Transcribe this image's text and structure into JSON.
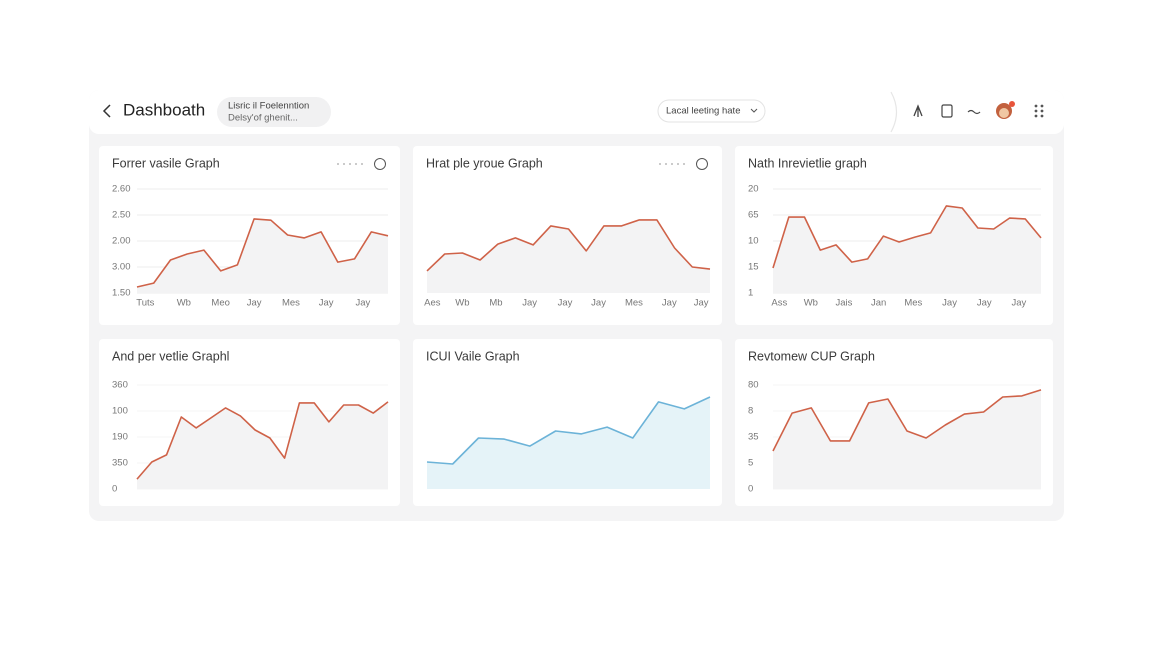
{
  "header": {
    "title": "Dashboath",
    "pill": [
      "Lisric il Foelenntion",
      "Delsy'of ghenit..."
    ],
    "dropdown": "Lacal leeting hate"
  },
  "chart_data": [
    {
      "type": "line",
      "title": "Forrer vasile Graph",
      "color": "#cf6248",
      "area_color": "#f3f3f4",
      "grid": true,
      "x": [
        0,
        1,
        2,
        3,
        4,
        5,
        6,
        7,
        8,
        9,
        10,
        11,
        12,
        13,
        14,
        15
      ],
      "values": [
        0.23,
        0.38,
        1.27,
        1.5,
        1.65,
        0.85,
        1.08,
        2.85,
        2.8,
        2.23,
        2.12,
        2.35,
        1.19,
        1.31,
        2.35,
        2.2
      ],
      "xlim": [
        0,
        15
      ],
      "ylim": [
        0,
        4
      ],
      "yticks": [
        {
          "value": 4,
          "label": "2.60"
        },
        {
          "value": 3,
          "label": "2.50"
        },
        {
          "value": 2,
          "label": "2.00"
        },
        {
          "value": 1,
          "label": "3.00"
        },
        {
          "value": 0,
          "label": "1.50"
        }
      ],
      "xticks": [
        {
          "value": 0.5,
          "label": "Tuts"
        },
        {
          "value": 2.8,
          "label": "Wb"
        },
        {
          "value": 5,
          "label": "Meo"
        },
        {
          "value": 7,
          "label": "Jay"
        },
        {
          "value": 9.2,
          "label": "Mes"
        },
        {
          "value": 11.3,
          "label": "Jay"
        },
        {
          "value": 13.5,
          "label": "Jay"
        }
      ]
    },
    {
      "type": "line",
      "title": "Hrat ple yroue Graph",
      "color": "#cf6248",
      "area_color": "#f3f3f4",
      "grid": false,
      "x": [
        0,
        1,
        2,
        3,
        4,
        5,
        6,
        7,
        8,
        9,
        10,
        11,
        12,
        13,
        14,
        15,
        16
      ],
      "values": [
        0.85,
        1.5,
        1.54,
        1.27,
        1.88,
        2.12,
        1.85,
        2.58,
        2.46,
        1.62,
        2.58,
        2.58,
        2.81,
        2.81,
        1.73,
        1,
        0.92
      ],
      "xlim": [
        0,
        16
      ],
      "ylim": [
        0,
        4
      ],
      "xticks": [
        {
          "value": 0.3,
          "label": "Aes"
        },
        {
          "value": 2,
          "label": "Wb"
        },
        {
          "value": 3.9,
          "label": "Mb"
        },
        {
          "value": 5.8,
          "label": "Jay"
        },
        {
          "value": 7.8,
          "label": "Jay"
        },
        {
          "value": 9.7,
          "label": "Jay"
        },
        {
          "value": 11.7,
          "label": "Mes"
        },
        {
          "value": 13.7,
          "label": "Jay"
        },
        {
          "value": 15.5,
          "label": "Jay"
        }
      ]
    },
    {
      "type": "line",
      "title": "Nath Inrevietlie graph",
      "color": "#cf6248",
      "area_color": "#f3f3f4",
      "grid": true,
      "x": [
        0,
        1,
        2,
        3,
        4,
        5,
        6,
        7,
        8,
        9,
        10,
        11,
        12,
        13,
        14,
        15,
        16,
        17
      ],
      "values": [
        0.96,
        2.92,
        2.92,
        1.65,
        1.85,
        1.19,
        1.31,
        2.19,
        1.96,
        2.15,
        2.31,
        3.35,
        3.27,
        2.5,
        2.46,
        2.88,
        2.85,
        2.12
      ],
      "xlim": [
        0,
        17
      ],
      "ylim": [
        0,
        4
      ],
      "yticks": [
        {
          "value": 4,
          "label": "20"
        },
        {
          "value": 3,
          "label": "65"
        },
        {
          "value": 2,
          "label": "10"
        },
        {
          "value": 1,
          "label": "15"
        },
        {
          "value": 0,
          "label": "1"
        }
      ],
      "xticks": [
        {
          "value": 0.4,
          "label": "Ass"
        },
        {
          "value": 2.4,
          "label": "Wb"
        },
        {
          "value": 4.5,
          "label": "Jais"
        },
        {
          "value": 6.7,
          "label": "Jan"
        },
        {
          "value": 8.9,
          "label": "Mes"
        },
        {
          "value": 11.2,
          "label": "Jay"
        },
        {
          "value": 13.4,
          "label": "Jay"
        },
        {
          "value": 15.6,
          "label": "Jay"
        }
      ]
    },
    {
      "type": "line",
      "title": "And per vetlie Graphl",
      "color": "#cf6248",
      "area_color": "#f3f3f4",
      "grid": false,
      "x": [
        0,
        1,
        2,
        3,
        4,
        5,
        6,
        7,
        8,
        9,
        10,
        11,
        12,
        13,
        14,
        15,
        16,
        17
      ],
      "values": [
        0.38,
        1.04,
        1.31,
        2.77,
        2.35,
        2.73,
        3.12,
        2.81,
        2.27,
        1.96,
        1.19,
        3.31,
        3.31,
        2.58,
        3.23,
        3.23,
        2.92,
        3.35
      ],
      "xlim": [
        0,
        17
      ],
      "ylim": [
        0,
        4
      ],
      "yticks": [
        {
          "value": 4,
          "label": "360"
        },
        {
          "value": 3,
          "label": "100"
        },
        {
          "value": 2,
          "label": "190"
        },
        {
          "value": 1,
          "label": "350"
        },
        0
      ]
    },
    {
      "type": "line",
      "title": "ICUI Vaile Graph",
      "color": "#6cb3d8",
      "area_color": "#e5f3f8",
      "grid": false,
      "x": [
        0,
        1,
        2,
        3,
        4,
        5,
        6,
        7,
        8,
        9,
        10,
        11
      ],
      "values": [
        1.04,
        0.96,
        1.96,
        1.92,
        1.65,
        2.23,
        2.12,
        2.38,
        1.96,
        3.35,
        3.08,
        3.54
      ],
      "xlim": [
        0,
        11
      ],
      "ylim": [
        0,
        4
      ]
    },
    {
      "type": "line",
      "title": "Revtomew CUP Graph",
      "color": "#cf6248",
      "area_color": "#f3f3f4",
      "grid": false,
      "x": [
        0,
        1,
        2,
        3,
        4,
        5,
        6,
        7,
        8,
        9,
        10,
        11,
        12,
        13,
        14
      ],
      "values": [
        1.46,
        2.92,
        3.12,
        1.85,
        1.85,
        3.31,
        3.46,
        2.23,
        1.96,
        2.46,
        2.88,
        2.96,
        3.54,
        3.58,
        3.81
      ],
      "xlim": [
        0,
        14
      ],
      "ylim": [
        0,
        4
      ],
      "yticks": [
        {
          "value": 4,
          "label": "80"
        },
        {
          "value": 3,
          "label": "8"
        },
        {
          "value": 2,
          "label": "35"
        },
        {
          "value": 1,
          "label": "5"
        },
        0
      ]
    }
  ]
}
